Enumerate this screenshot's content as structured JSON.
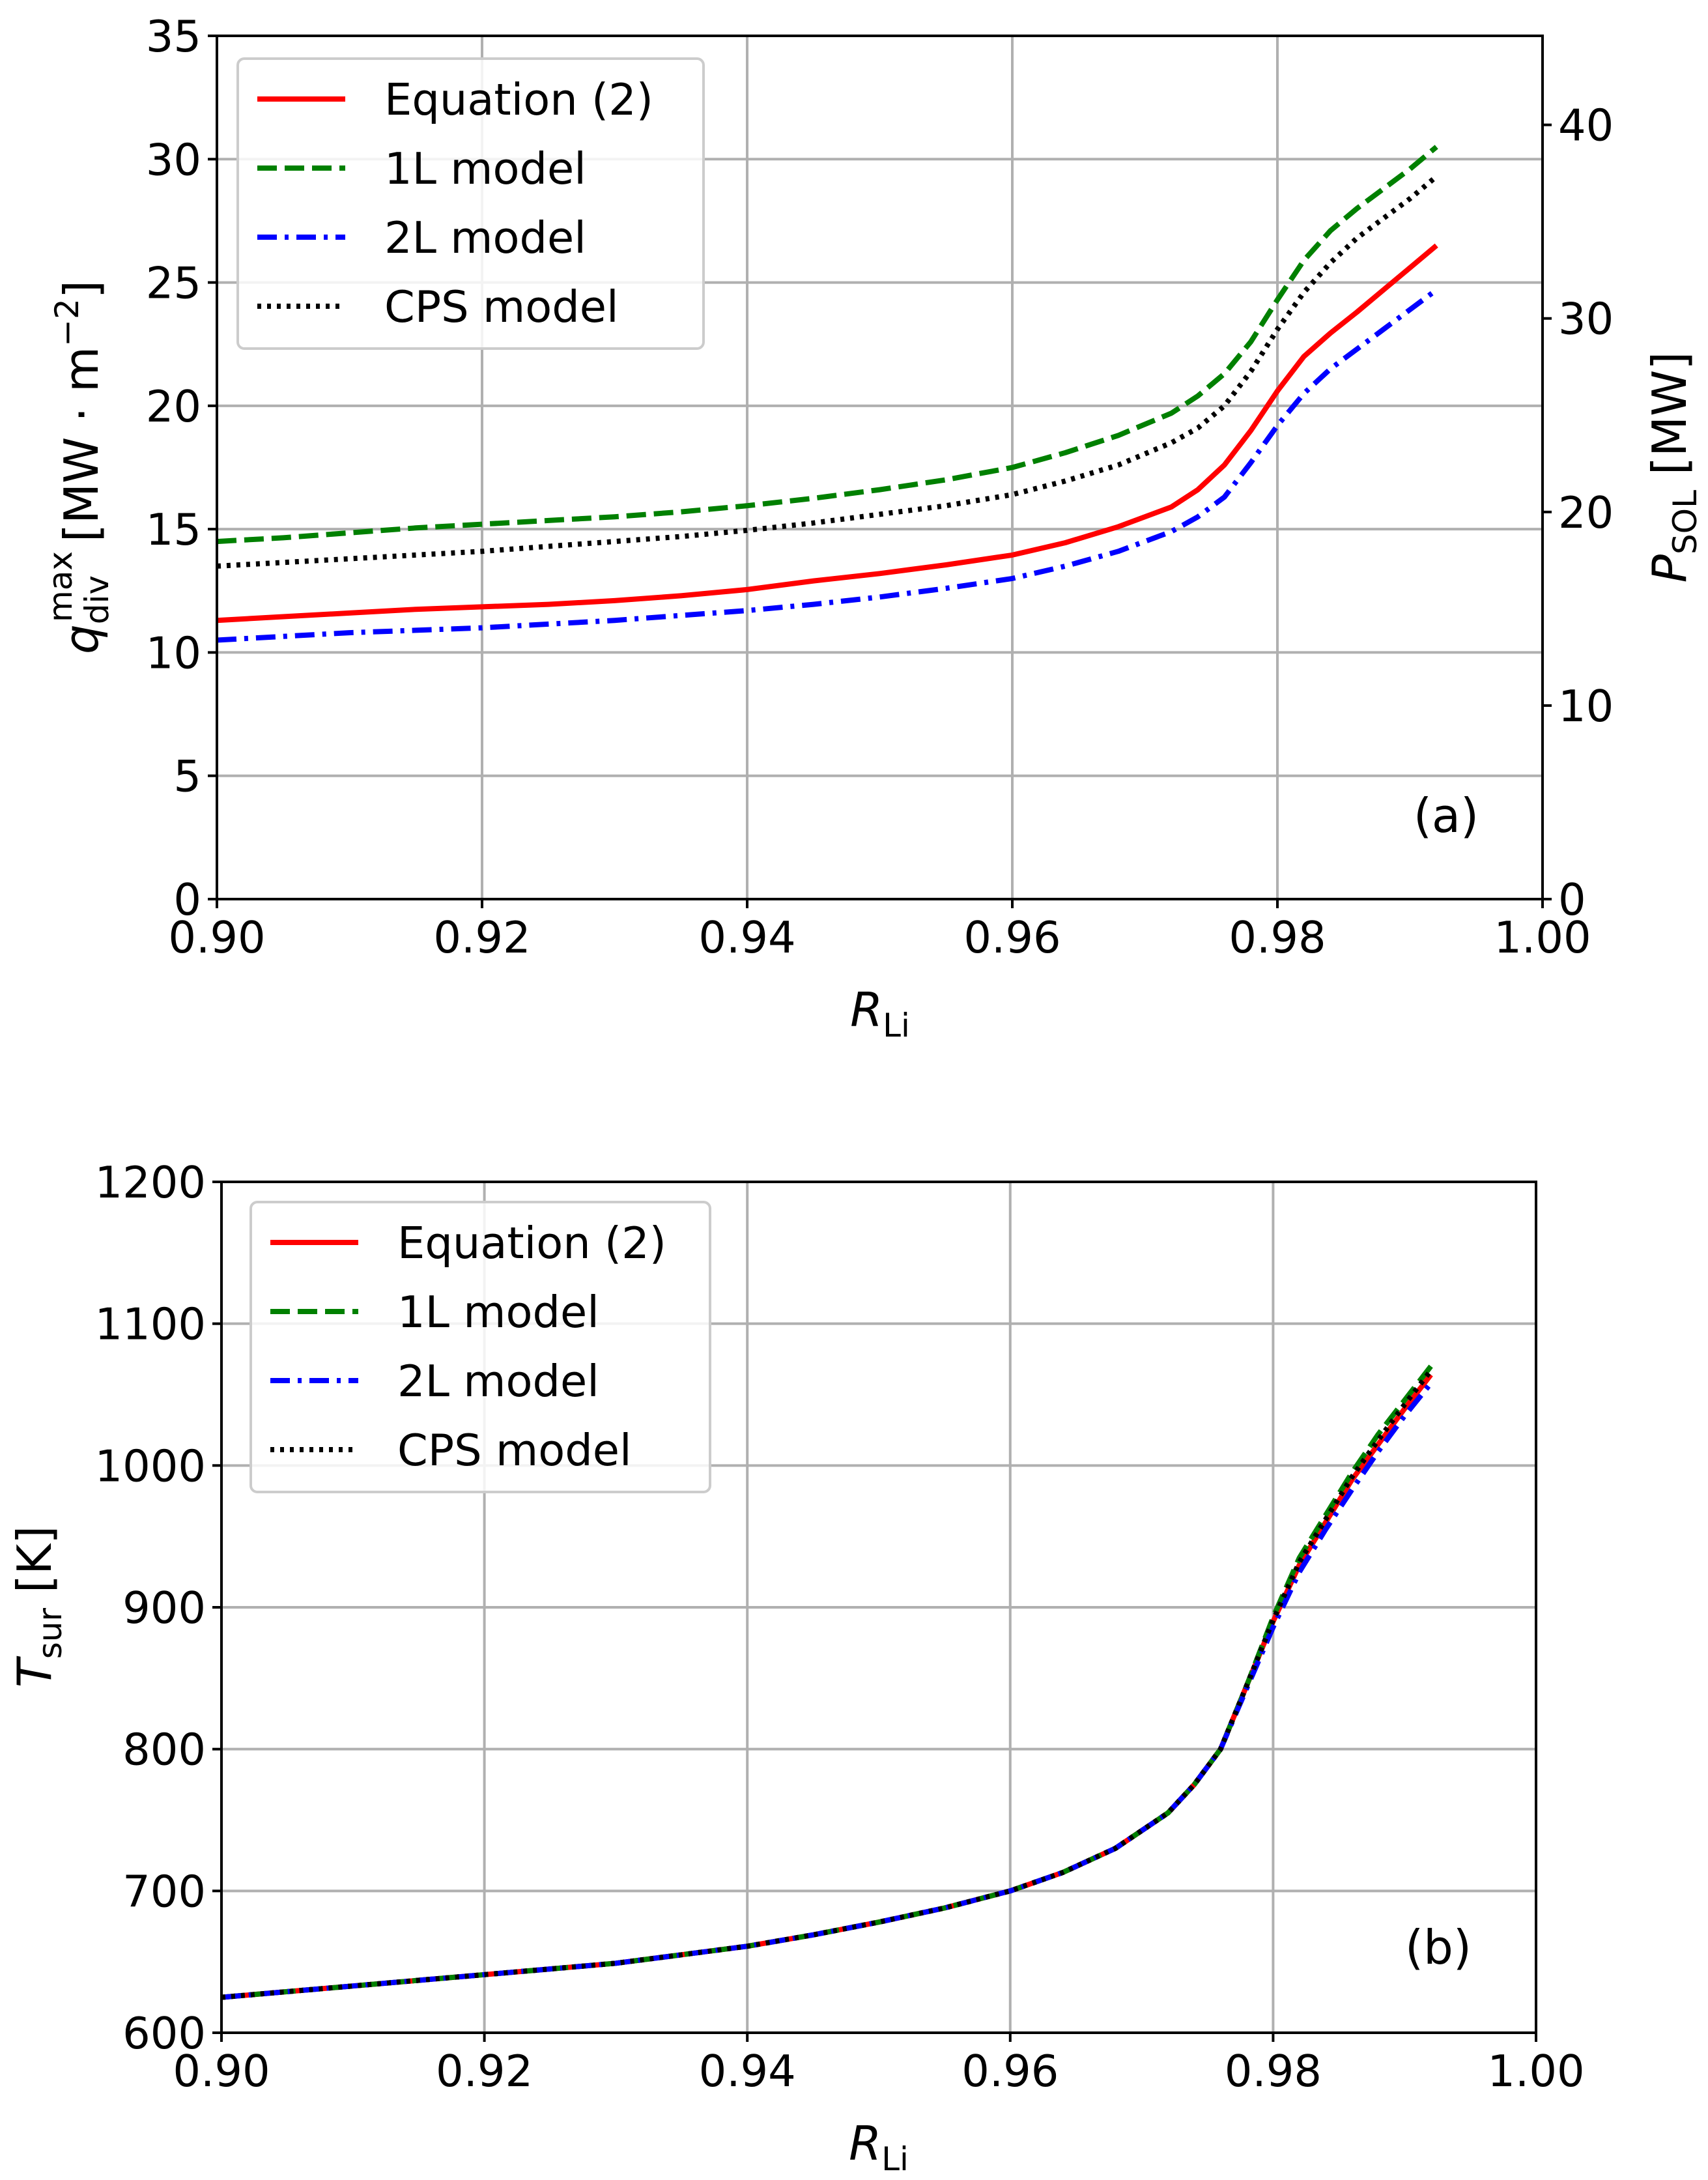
{
  "chart_data": [
    {
      "type": "line",
      "panel_label": "(a)",
      "xlabel_main": "R",
      "xlabel_sub": "Li",
      "ylabel": "q_div^max [MW·m^-2]",
      "ylabel_parts": {
        "symbol": "q",
        "sup": "max",
        "sub": "div",
        "unit_prefix": "[MW · m",
        "unit_exp": "−2",
        "unit_suffix": "]"
      },
      "y2label_main": "P",
      "y2label_sub": "SOL",
      "y2label_unit": " [MW]",
      "xlim": [
        0.9,
        1.0
      ],
      "ylim": [
        0,
        35
      ],
      "y2lim": [
        0,
        44.6
      ],
      "xticks": [
        "0.90",
        "0.92",
        "0.94",
        "0.96",
        "0.98",
        "1.00"
      ],
      "yticks": [
        "0",
        "5",
        "10",
        "15",
        "20",
        "25",
        "30",
        "35"
      ],
      "y2ticks": [
        "0",
        "10",
        "20",
        "30",
        "40"
      ],
      "grid": true,
      "legend_position": "top-left",
      "x": [
        0.9,
        0.905,
        0.91,
        0.915,
        0.92,
        0.925,
        0.93,
        0.935,
        0.94,
        0.945,
        0.95,
        0.955,
        0.96,
        0.964,
        0.968,
        0.972,
        0.974,
        0.976,
        0.978,
        0.98,
        0.982,
        0.984,
        0.986,
        0.988,
        0.99,
        0.992
      ],
      "series": [
        {
          "name": "Equation (2)",
          "color": "#ff0000",
          "dash": "solid",
          "values": [
            11.3,
            11.45,
            11.6,
            11.75,
            11.85,
            11.95,
            12.1,
            12.3,
            12.55,
            12.9,
            13.2,
            13.55,
            13.95,
            14.45,
            15.1,
            15.9,
            16.6,
            17.6,
            19.0,
            20.6,
            22.0,
            22.95,
            23.8,
            24.7,
            25.6,
            26.5
          ]
        },
        {
          "name": "1L model",
          "color": "#008000",
          "dash": "dashed",
          "values": [
            14.5,
            14.65,
            14.85,
            15.05,
            15.2,
            15.35,
            15.5,
            15.7,
            15.95,
            16.25,
            16.6,
            17.0,
            17.5,
            18.1,
            18.8,
            19.7,
            20.4,
            21.3,
            22.6,
            24.3,
            25.9,
            27.1,
            28.0,
            28.8,
            29.6,
            30.5
          ]
        },
        {
          "name": "2L model",
          "color": "#0000ff",
          "dash": "dashdot",
          "values": [
            10.5,
            10.65,
            10.8,
            10.9,
            11.0,
            11.15,
            11.3,
            11.5,
            11.7,
            11.95,
            12.25,
            12.6,
            13.0,
            13.5,
            14.1,
            14.9,
            15.5,
            16.3,
            17.7,
            19.2,
            20.5,
            21.5,
            22.3,
            23.1,
            23.9,
            24.7
          ]
        },
        {
          "name": "CPS model",
          "color": "#000000",
          "dash": "dotted",
          "values": [
            13.5,
            13.65,
            13.8,
            13.95,
            14.1,
            14.3,
            14.5,
            14.7,
            14.95,
            15.25,
            15.6,
            15.95,
            16.4,
            16.95,
            17.6,
            18.5,
            19.1,
            20.0,
            21.4,
            23.1,
            24.6,
            25.8,
            26.8,
            27.6,
            28.4,
            29.3
          ]
        }
      ]
    },
    {
      "type": "line",
      "panel_label": "(b)",
      "xlabel_main": "R",
      "xlabel_sub": "Li",
      "ylabel_main": "T",
      "ylabel_sub": "sur",
      "ylabel_unit": " [K]",
      "xlim": [
        0.9,
        1.0
      ],
      "ylim": [
        600,
        1200
      ],
      "xticks": [
        "0.90",
        "0.92",
        "0.94",
        "0.96",
        "0.98",
        "1.00"
      ],
      "yticks": [
        "600",
        "700",
        "800",
        "900",
        "1000",
        "1100",
        "1200"
      ],
      "grid": true,
      "legend_position": "top-left",
      "x": [
        0.9,
        0.905,
        0.91,
        0.915,
        0.92,
        0.925,
        0.93,
        0.935,
        0.94,
        0.945,
        0.95,
        0.955,
        0.96,
        0.964,
        0.968,
        0.972,
        0.974,
        0.976,
        0.978,
        0.98,
        0.982,
        0.984,
        0.986,
        0.988,
        0.99,
        0.992
      ],
      "series": [
        {
          "name": "Equation (2)",
          "color": "#ff0000",
          "dash": "solid",
          "values": [
            625,
            629,
            633,
            637,
            641,
            645,
            649,
            655,
            661,
            669,
            678,
            688,
            700,
            713,
            730,
            755,
            775,
            800,
            845,
            890,
            930,
            960,
            990,
            1015,
            1040,
            1064
          ]
        },
        {
          "name": "1L model",
          "color": "#008000",
          "dash": "dashed",
          "values": [
            625,
            629,
            633,
            637,
            641,
            645,
            649,
            655,
            661,
            669,
            678,
            688,
            700,
            713,
            730,
            755,
            775,
            800,
            845,
            893,
            935,
            965,
            995,
            1022,
            1046,
            1070
          ]
        },
        {
          "name": "2L model",
          "color": "#0000ff",
          "dash": "dashdot",
          "values": [
            625,
            629,
            633,
            637,
            641,
            645,
            649,
            655,
            661,
            669,
            678,
            688,
            700,
            713,
            730,
            755,
            775,
            800,
            843,
            886,
            925,
            955,
            983,
            1010,
            1035,
            1058
          ]
        },
        {
          "name": "CPS model",
          "color": "#000000",
          "dash": "dotted",
          "values": [
            625,
            629,
            633,
            637,
            641,
            645,
            649,
            655,
            661,
            669,
            678,
            688,
            700,
            713,
            730,
            755,
            775,
            800,
            845,
            891,
            932,
            962,
            992,
            1018,
            1043,
            1067
          ]
        }
      ]
    }
  ]
}
